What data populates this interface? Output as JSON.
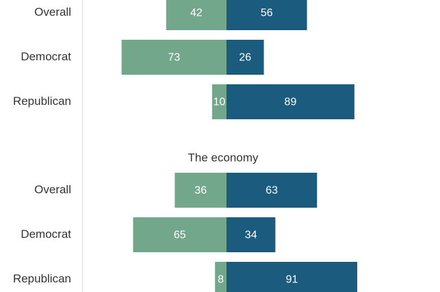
{
  "chart_data": {
    "type": "bar",
    "orientation": "horizontal-diverging",
    "colors": {
      "left": "#73a78b",
      "right": "#1b5b7e",
      "axis": "#d9d9d9",
      "text": "#333333"
    },
    "groups": [
      {
        "title": "",
        "categories": [
          "Overall",
          "Democrat",
          "Republican"
        ],
        "series": [
          {
            "side": "left",
            "values": [
              42,
              73,
              10
            ]
          },
          {
            "side": "right",
            "values": [
              56,
              26,
              89
            ]
          }
        ]
      },
      {
        "title": "The economy",
        "categories": [
          "Overall",
          "Democrat",
          "Republican"
        ],
        "series": [
          {
            "side": "left",
            "values": [
              36,
              65,
              8
            ]
          },
          {
            "side": "right",
            "values": [
              63,
              34,
              91
            ]
          }
        ]
      }
    ]
  }
}
